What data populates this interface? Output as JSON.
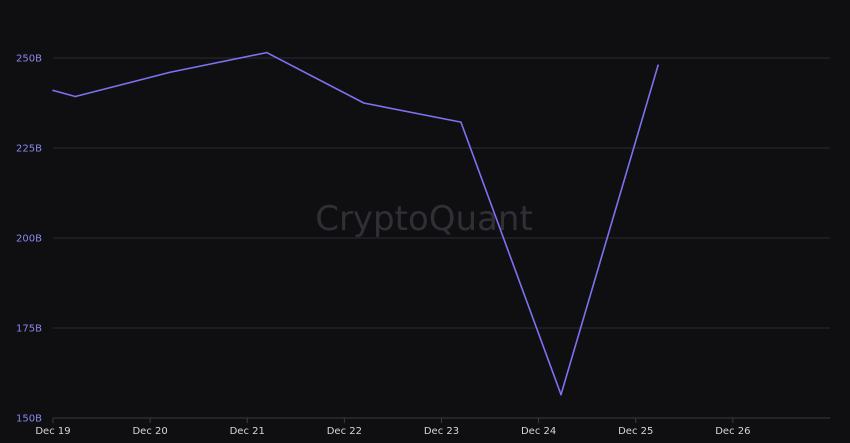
{
  "watermark": "CryptoQuant",
  "colors": {
    "background": "#0f0f12",
    "line": "#7c72f2",
    "grid": "#2a2a30",
    "y_tick": "#8a86f0",
    "x_tick": "#d6d6d9"
  },
  "chart_data": {
    "type": "line",
    "title": "",
    "xlabel": "",
    "ylabel": "",
    "x_ticks": [
      "Dec 19",
      "Dec 20",
      "Dec 21",
      "Dec 22",
      "Dec 23",
      "Dec 24",
      "Dec 25",
      "Dec 26"
    ],
    "y_ticks": [
      "150B",
      "175B",
      "200B",
      "225B",
      "250B"
    ],
    "ylim": [
      150,
      260
    ],
    "xlim": [
      0,
      8
    ],
    "grid": true,
    "legend": "none",
    "series": [
      {
        "x": [
          0.0,
          0.23,
          1.2,
          2.2,
          3.2,
          4.2,
          5.23,
          6.23
        ],
        "y": [
          241,
          239.3,
          246,
          251.5,
          237.5,
          232.2,
          156.5,
          248
        ]
      }
    ]
  }
}
